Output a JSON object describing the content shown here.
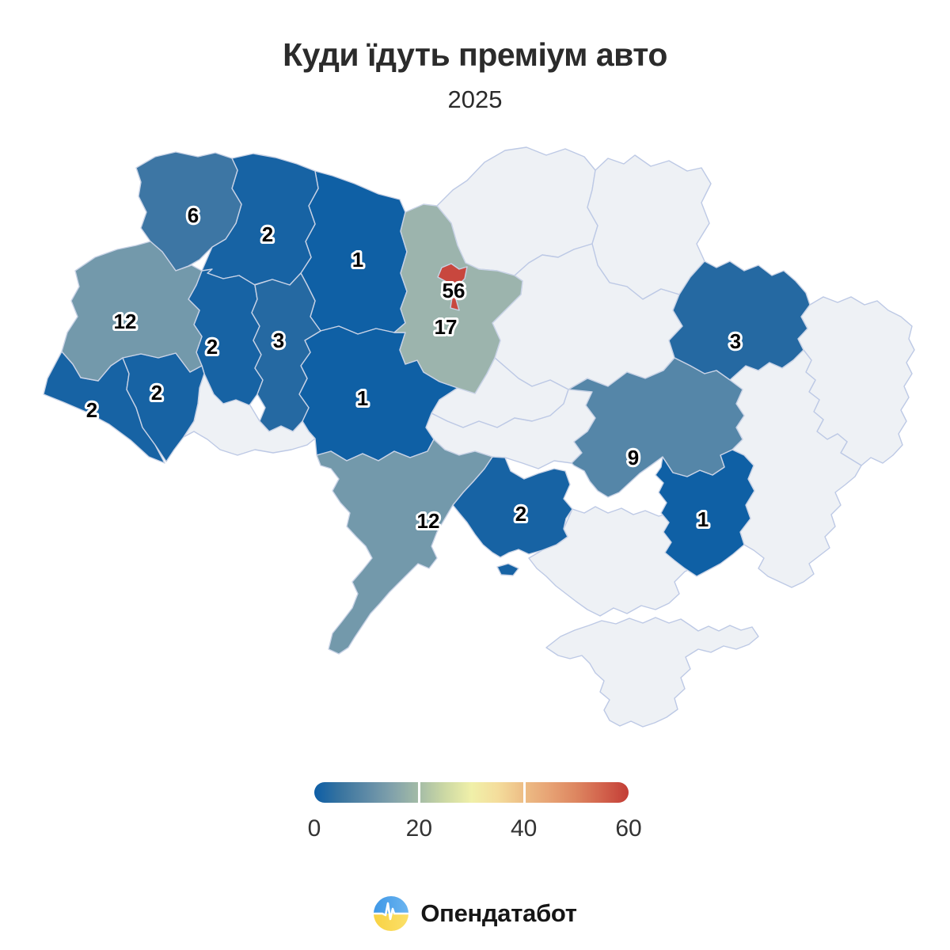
{
  "header": {
    "title": "Куди їдуть преміум авто",
    "subtitle": "2025"
  },
  "map": {
    "no_data_color": "#eef1f5",
    "no_data_border": "#bdc9e5",
    "border_color": "#c9d3e6",
    "label_color": "#000000",
    "label_halo": "#ffffff"
  },
  "legend": {
    "min": 0,
    "max": 60,
    "ticks": [
      "0",
      "20",
      "40",
      "60"
    ],
    "gradient": [
      "#0d5ea6",
      "#39749f",
      "#5e8aa6",
      "#82a2ab",
      "#a4bca6",
      "#cdd9a4",
      "#f0f0a9",
      "#f4dd9c",
      "#edbd85",
      "#e7a274",
      "#dd8660",
      "#d2624c",
      "#c33d36"
    ],
    "separator_color": "#ffffff"
  },
  "footer": {
    "brand": "Опендатабот",
    "flag_blue_1": "#3e97e6",
    "flag_blue_2": "#6cb5f0",
    "flag_yellow_1": "#f8d243",
    "flag_yellow_2": "#fbe06a",
    "pulse_color": "#ffffff"
  },
  "chart_data": {
    "type": "choropleth",
    "title": "Куди їдуть преміум авто",
    "subtitle": "2025",
    "legend_ticks": [
      0,
      20,
      40,
      60
    ],
    "value_range": [
      0,
      60
    ],
    "regions": [
      {
        "id": "chernihiv",
        "value": null,
        "color": null
      },
      {
        "id": "sumy",
        "value": null,
        "color": null
      },
      {
        "id": "poltava",
        "value": null,
        "color": null
      },
      {
        "id": "cherkasy",
        "value": null,
        "color": null
      },
      {
        "id": "kirovohrad",
        "value": null,
        "color": null
      },
      {
        "id": "chernivtsi",
        "value": null,
        "color": null
      },
      {
        "id": "luhansk",
        "value": null,
        "color": null
      },
      {
        "id": "donetsk",
        "value": null,
        "color": null
      },
      {
        "id": "kherson",
        "value": null,
        "color": null
      },
      {
        "id": "crimea",
        "value": null,
        "color": null
      },
      {
        "id": "zhytomyr",
        "value": 1,
        "color": "#0f60a5"
      },
      {
        "id": "vinnytsia",
        "value": 1,
        "color": "#0f60a5"
      },
      {
        "id": "zaporizhzhia",
        "value": 1,
        "color": "#0f60a5"
      },
      {
        "id": "rivne",
        "value": 2,
        "color": "#1763a4"
      },
      {
        "id": "ternopil",
        "value": 2,
        "color": "#1763a4"
      },
      {
        "id": "zakarpattia",
        "value": 2,
        "color": "#1763a4"
      },
      {
        "id": "ivano-frankivsk",
        "value": 2,
        "color": "#1763a4"
      },
      {
        "id": "mykolaiv",
        "value": 2,
        "color": "#1763a4"
      },
      {
        "id": "khmelnytskyi",
        "value": 3,
        "color": "#2569a2"
      },
      {
        "id": "kharkiv",
        "value": 3,
        "color": "#2569a2"
      },
      {
        "id": "volyn",
        "value": 6,
        "color": "#3d76a4"
      },
      {
        "id": "dnipropetrovsk",
        "value": 9,
        "color": "#5586a8"
      },
      {
        "id": "lviv",
        "value": 12,
        "color": "#7399ab"
      },
      {
        "id": "odesa",
        "value": 12,
        "color": "#7399ab"
      },
      {
        "id": "kyiv-oblast",
        "value": 17,
        "color": "#9cb4ad"
      },
      {
        "id": "kyiv-city",
        "value": 56,
        "color": "#c8473e"
      }
    ]
  }
}
